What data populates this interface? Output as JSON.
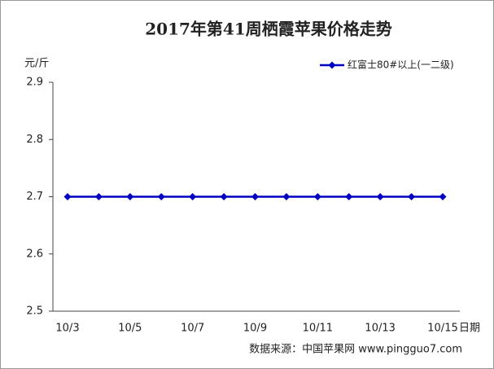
{
  "chart_data": {
    "type": "line",
    "title": "2017年第41周栖霞苹果价格走势",
    "y_label": "元/斤",
    "x_label": "日期",
    "source": "数据来源：中国苹果网 www.pingguo7.com",
    "categories": [
      "10/3",
      null,
      "10/5",
      null,
      "10/7",
      null,
      "10/9",
      null,
      "10/11",
      null,
      "10/13",
      null,
      "10/15"
    ],
    "series": [
      {
        "name": "红富士80#以上(一二级)",
        "color": "#0000c0",
        "values": [
          2.7,
          2.7,
          2.7,
          2.7,
          2.7,
          2.7,
          2.7,
          2.7,
          2.7,
          2.7,
          2.7,
          2.7,
          2.7
        ]
      }
    ],
    "ylim": [
      2.5,
      2.9
    ],
    "yticks": [
      2.5,
      2.6,
      2.7,
      2.8,
      2.9
    ],
    "grid": false,
    "legend": "top-right"
  }
}
